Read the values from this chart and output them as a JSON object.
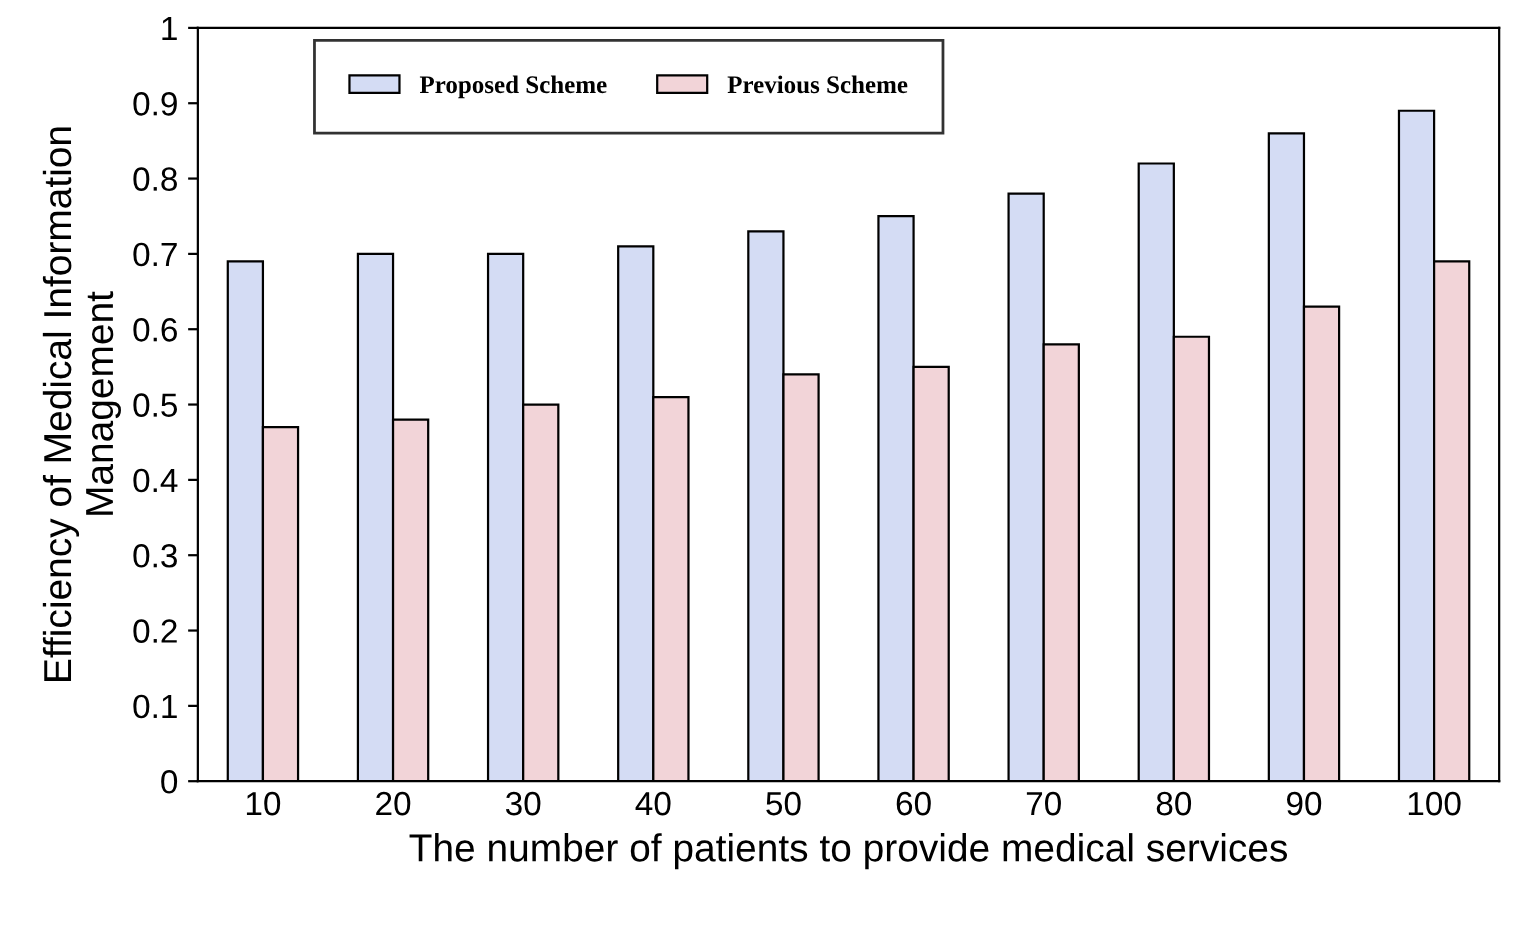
{
  "chart_data": {
    "type": "bar",
    "categories": [
      "10",
      "20",
      "30",
      "40",
      "50",
      "60",
      "70",
      "80",
      "90",
      "100"
    ],
    "series": [
      {
        "name": "Proposed Scheme",
        "color": "#d4dcf4",
        "values": [
          0.69,
          0.7,
          0.7,
          0.71,
          0.73,
          0.75,
          0.78,
          0.82,
          0.86,
          0.89
        ]
      },
      {
        "name": "Previous Scheme",
        "color": "#f2d4d8",
        "values": [
          0.47,
          0.48,
          0.5,
          0.51,
          0.54,
          0.55,
          0.58,
          0.59,
          0.63,
          0.69
        ]
      }
    ],
    "xlabel": "The number of patients to provide medical services",
    "ylabel": "Efficiency of Medical Information\nManagement",
    "ylim": [
      0,
      1
    ],
    "yticks": [
      0,
      0.1,
      0.2,
      0.3,
      0.4,
      0.5,
      0.6,
      0.7,
      0.8,
      0.9,
      1
    ],
    "legend": "top left",
    "grid": false
  }
}
